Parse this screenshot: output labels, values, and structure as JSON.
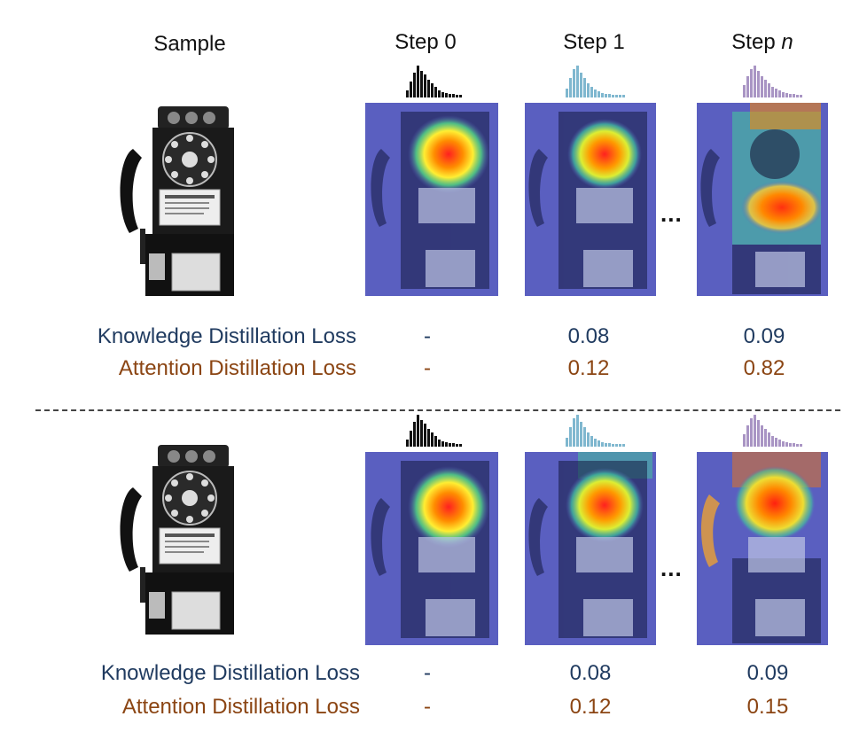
{
  "headers": {
    "sample": "Sample",
    "step0": "Step 0",
    "step1": "Step 1",
    "stepn_prefix": "Step ",
    "stepn_var": "n"
  },
  "ellipsis": "...",
  "rows": [
    {
      "kd_label": "Knowledge Distillation Loss",
      "ad_label": "Attention Distillation Loss",
      "kd_values": [
        "-",
        "0.08",
        "0.09"
      ],
      "ad_values": [
        "-",
        "0.12",
        "0.82"
      ]
    },
    {
      "kd_label": "Knowledge Distillation Loss",
      "ad_label": "Attention Distillation Loss",
      "kd_values": [
        "-",
        "0.08",
        "0.09"
      ],
      "ad_values": [
        "-",
        "0.12",
        "0.15"
      ]
    }
  ],
  "histogram_colors": [
    "#111111",
    "#7fb7cf",
    "#a995c4"
  ],
  "colors": {
    "kd_text": "#1f3a5f",
    "ad_text": "#8b4513",
    "heat_bg": "#5a5fc0"
  },
  "images": {
    "sample": "payphone-photo",
    "attention": "attention-heatmap"
  }
}
